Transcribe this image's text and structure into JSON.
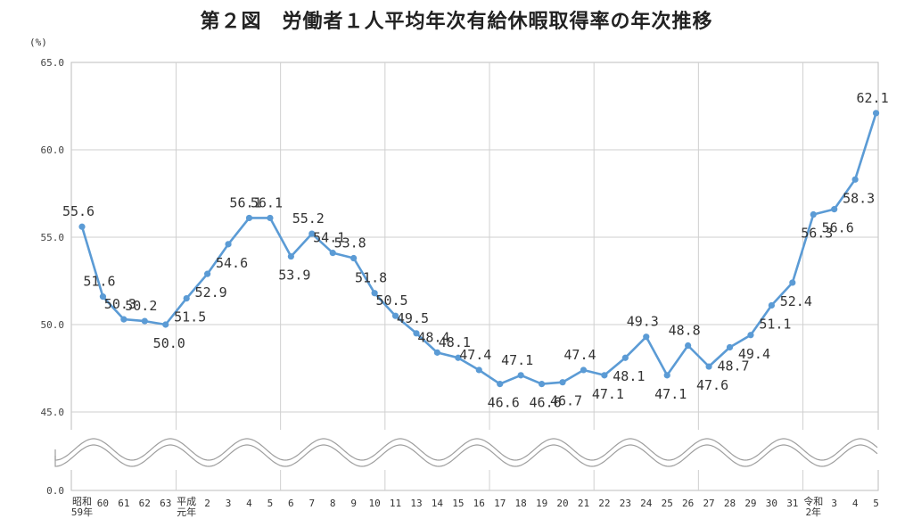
{
  "title": "第２図　労働者１人平均年次有給休暇取得率の年次推移",
  "chart_data": {
    "type": "line",
    "title": "第２図　労働者１人平均年次有給休暇取得率の年次推移",
    "unit_label": "(%)",
    "xlabel": "",
    "ylabel": "",
    "ylim": [
      45.0,
      65.0
    ],
    "axis_break": true,
    "y_zero_label": "0.0",
    "y_ticks": [
      "0.0",
      "45.0",
      "50.0",
      "55.0",
      "60.0",
      "65.0"
    ],
    "grid": true,
    "color": "#5b9bd5",
    "categories": [
      "昭和59年",
      "60",
      "61",
      "62",
      "63",
      "平成元年",
      "2",
      "3",
      "4",
      "5",
      "6",
      "7",
      "8",
      "9",
      "10",
      "11",
      "13",
      "14",
      "15",
      "16",
      "17",
      "18",
      "19",
      "20",
      "21",
      "22",
      "23",
      "24",
      "25",
      "26",
      "27",
      "28",
      "29",
      "30",
      "31",
      "令和2年",
      "3",
      "4",
      "5"
    ],
    "values": [
      55.6,
      51.6,
      50.3,
      50.2,
      50.0,
      51.5,
      52.9,
      54.6,
      56.1,
      56.1,
      53.9,
      55.2,
      54.1,
      53.8,
      51.8,
      50.5,
      49.5,
      48.4,
      48.1,
      47.4,
      46.6,
      47.1,
      46.6,
      46.7,
      47.4,
      47.1,
      48.1,
      49.3,
      47.1,
      48.8,
      47.6,
      48.7,
      49.4,
      51.1,
      52.4,
      56.3,
      56.6,
      58.3,
      62.1
    ],
    "value_labels": [
      "55.6",
      "51.6",
      "50.3",
      "50.2",
      "50.0",
      "51.5",
      "52.9",
      "54.6",
      "56.1",
      "56.1",
      "53.9",
      "55.2",
      "54.1",
      "53.8",
      "51.8",
      "50.5",
      "49.5",
      "48.4",
      "48.1",
      "47.4",
      "46.6",
      "47.1",
      "46.6",
      "46.7",
      "47.4",
      "47.1",
      "48.1",
      "49.3",
      "47.1",
      "48.8",
      "47.6",
      "48.7",
      "49.4",
      "51.1",
      "52.4",
      "56.3",
      "56.6",
      "58.3",
      "62.1"
    ]
  }
}
